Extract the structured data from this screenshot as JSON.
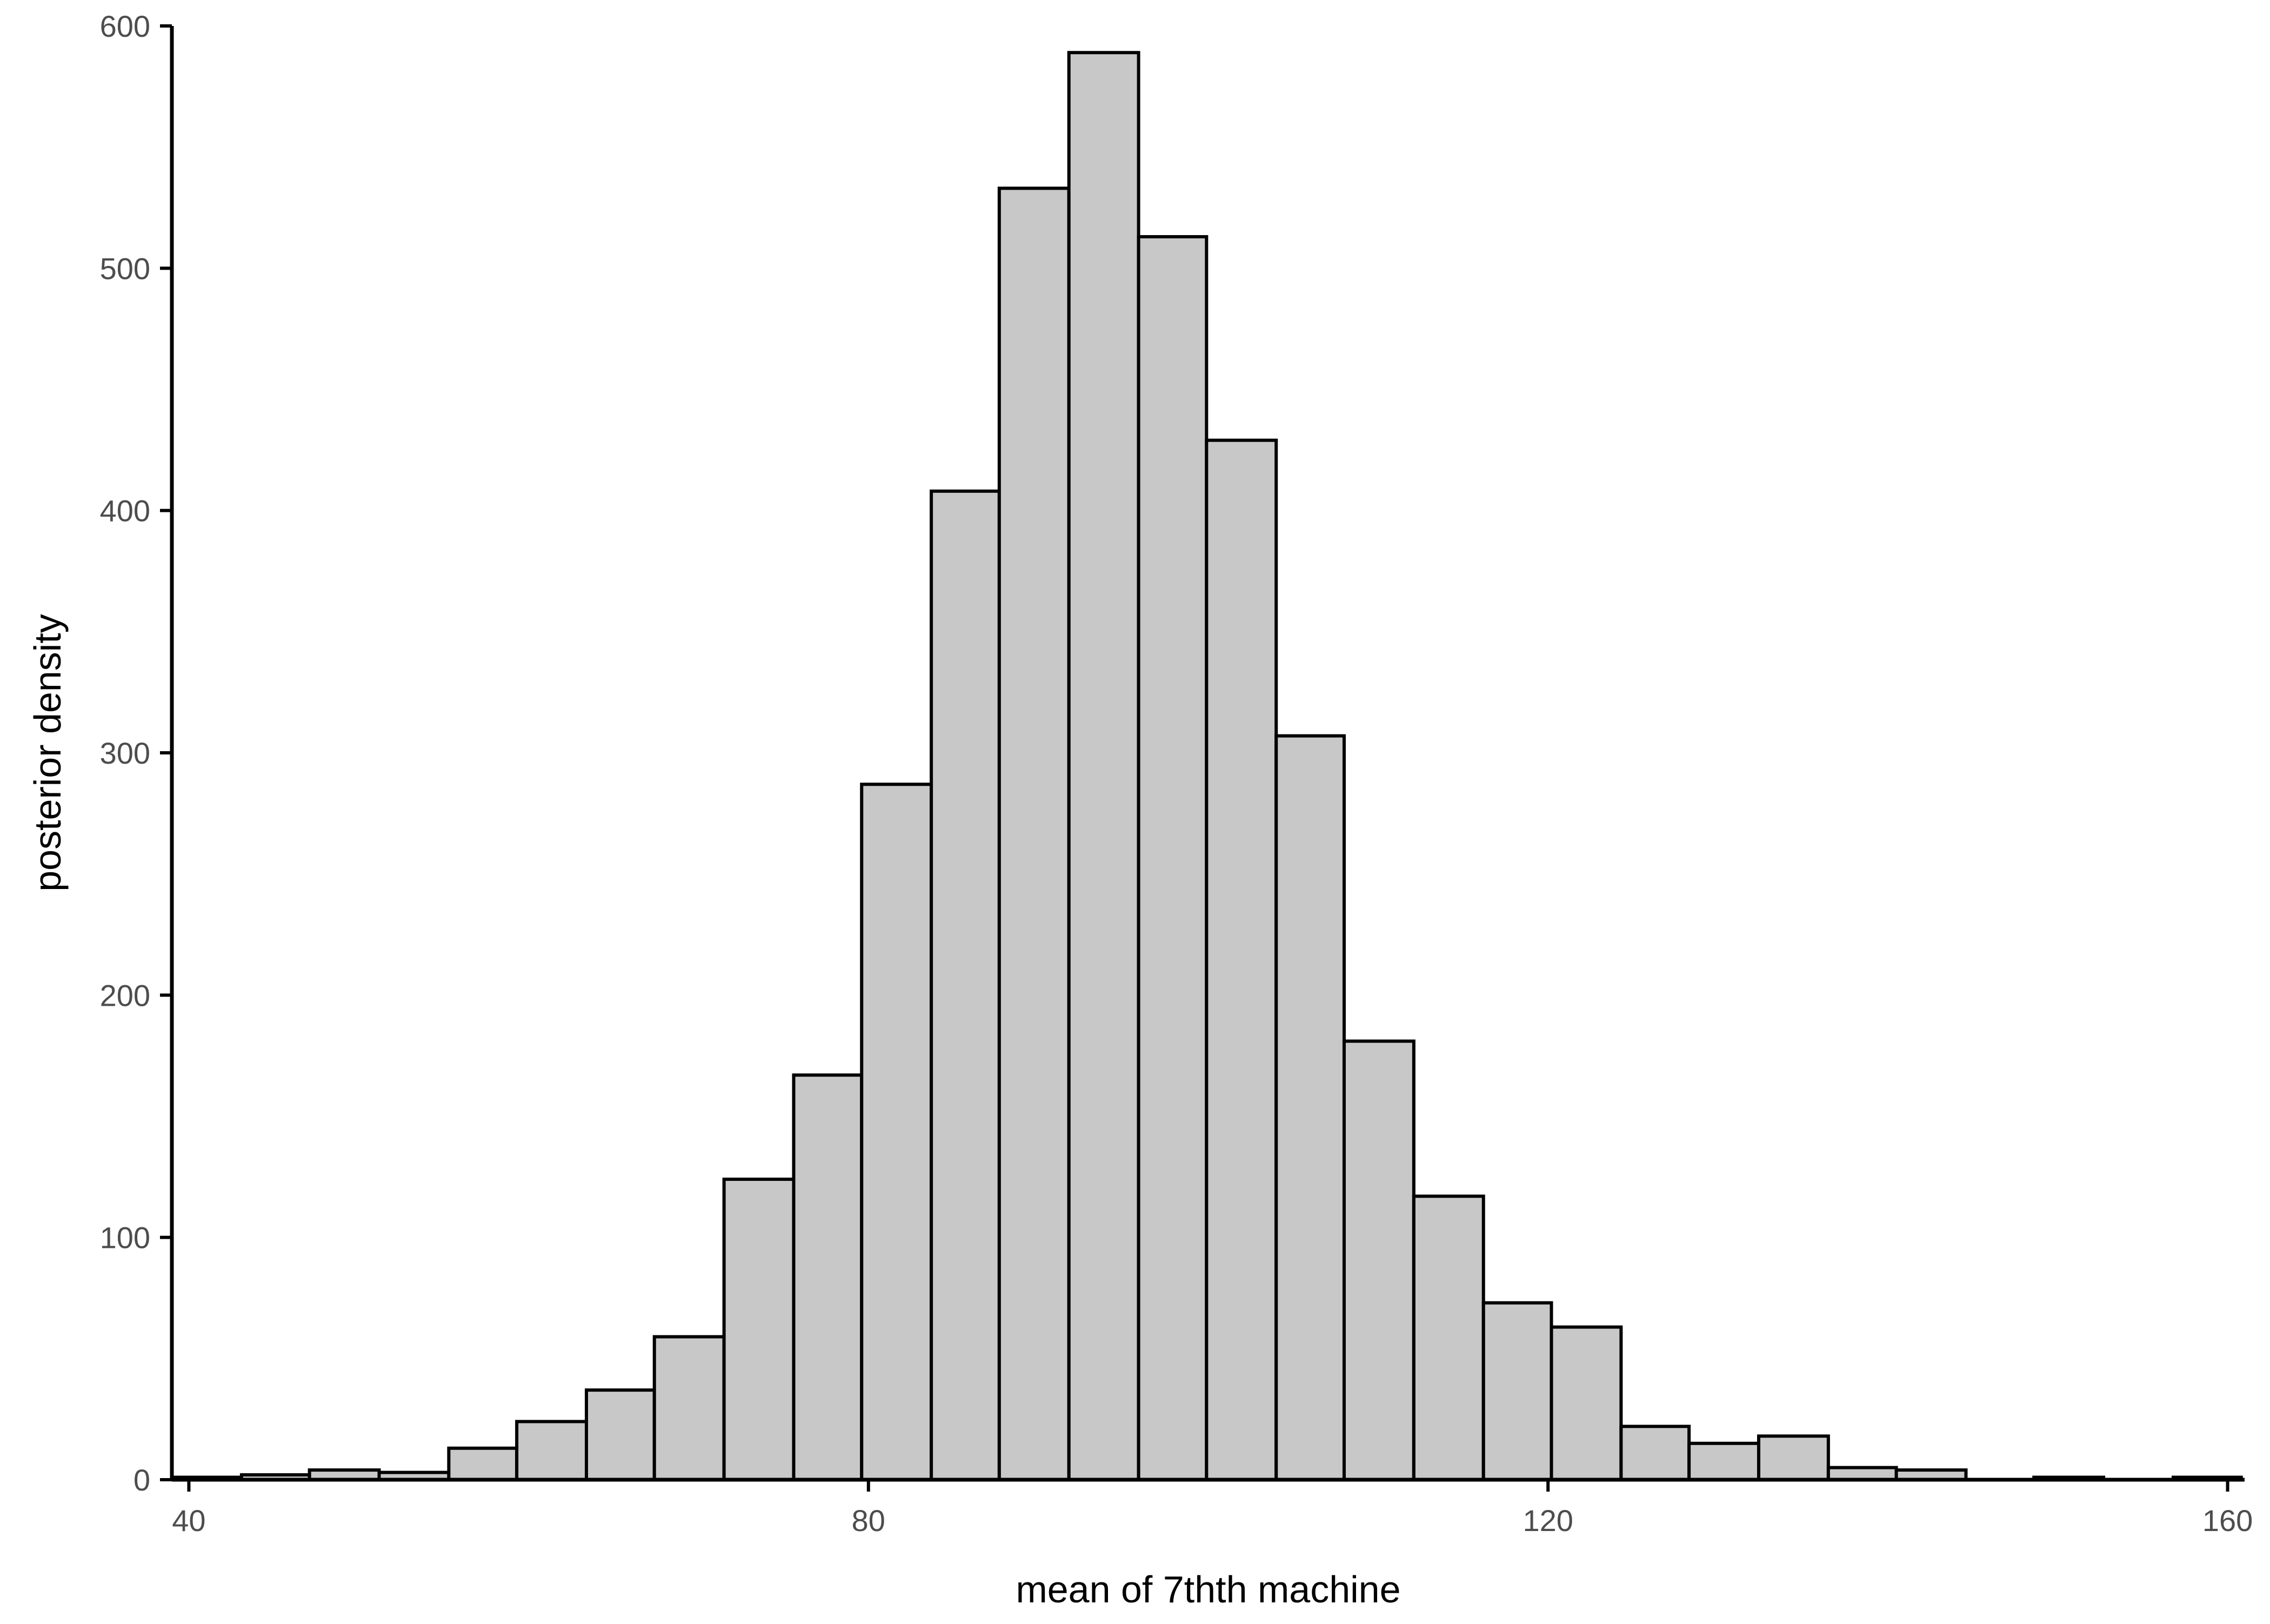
{
  "chart_data": {
    "type": "bar",
    "subtype": "histogram",
    "title": "",
    "xlabel": "mean of 7thth machine",
    "ylabel": "posterior density",
    "xlim": [
      39,
      161
    ],
    "ylim": [
      0,
      600
    ],
    "x_ticks": [
      40,
      80,
      120,
      160
    ],
    "y_ticks": [
      0,
      100,
      200,
      300,
      400,
      500,
      600
    ],
    "grid": false,
    "legend": "none",
    "colors": {
      "bar_fill": "#c8c8c8",
      "bar_stroke": "#000000",
      "axis": "#000000",
      "tick_label": "#4d4d4d",
      "background": "#ffffff"
    },
    "bins": [
      {
        "x0": 39.0,
        "x1": 43.1,
        "value": 1
      },
      {
        "x0": 43.1,
        "x1": 47.1,
        "value": 2
      },
      {
        "x0": 47.1,
        "x1": 51.2,
        "value": 4
      },
      {
        "x0": 51.2,
        "x1": 55.3,
        "value": 3
      },
      {
        "x0": 55.3,
        "x1": 59.3,
        "value": 13
      },
      {
        "x0": 59.3,
        "x1": 63.4,
        "value": 24
      },
      {
        "x0": 63.4,
        "x1": 67.4,
        "value": 37
      },
      {
        "x0": 67.4,
        "x1": 71.5,
        "value": 59
      },
      {
        "x0": 71.5,
        "x1": 75.6,
        "value": 124
      },
      {
        "x0": 75.6,
        "x1": 79.6,
        "value": 167
      },
      {
        "x0": 79.6,
        "x1": 83.7,
        "value": 287
      },
      {
        "x0": 83.7,
        "x1": 87.7,
        "value": 408
      },
      {
        "x0": 87.7,
        "x1": 91.8,
        "value": 533
      },
      {
        "x0": 91.8,
        "x1": 95.9,
        "value": 589
      },
      {
        "x0": 95.9,
        "x1": 99.9,
        "value": 513
      },
      {
        "x0": 99.9,
        "x1": 104.0,
        "value": 429
      },
      {
        "x0": 104.0,
        "x1": 108.0,
        "value": 307
      },
      {
        "x0": 108.0,
        "x1": 112.1,
        "value": 181
      },
      {
        "x0": 112.1,
        "x1": 116.2,
        "value": 117
      },
      {
        "x0": 116.2,
        "x1": 120.2,
        "value": 73
      },
      {
        "x0": 120.2,
        "x1": 124.3,
        "value": 63
      },
      {
        "x0": 124.3,
        "x1": 128.3,
        "value": 22
      },
      {
        "x0": 128.3,
        "x1": 132.4,
        "value": 15
      },
      {
        "x0": 132.4,
        "x1": 136.5,
        "value": 18
      },
      {
        "x0": 136.5,
        "x1": 140.5,
        "value": 5
      },
      {
        "x0": 140.5,
        "x1": 144.6,
        "value": 4
      },
      {
        "x0": 144.6,
        "x1": 148.6,
        "value": 0
      },
      {
        "x0": 148.6,
        "x1": 152.7,
        "value": 1
      },
      {
        "x0": 152.7,
        "x1": 156.8,
        "value": 0
      },
      {
        "x0": 156.8,
        "x1": 160.8,
        "value": 1
      }
    ]
  }
}
